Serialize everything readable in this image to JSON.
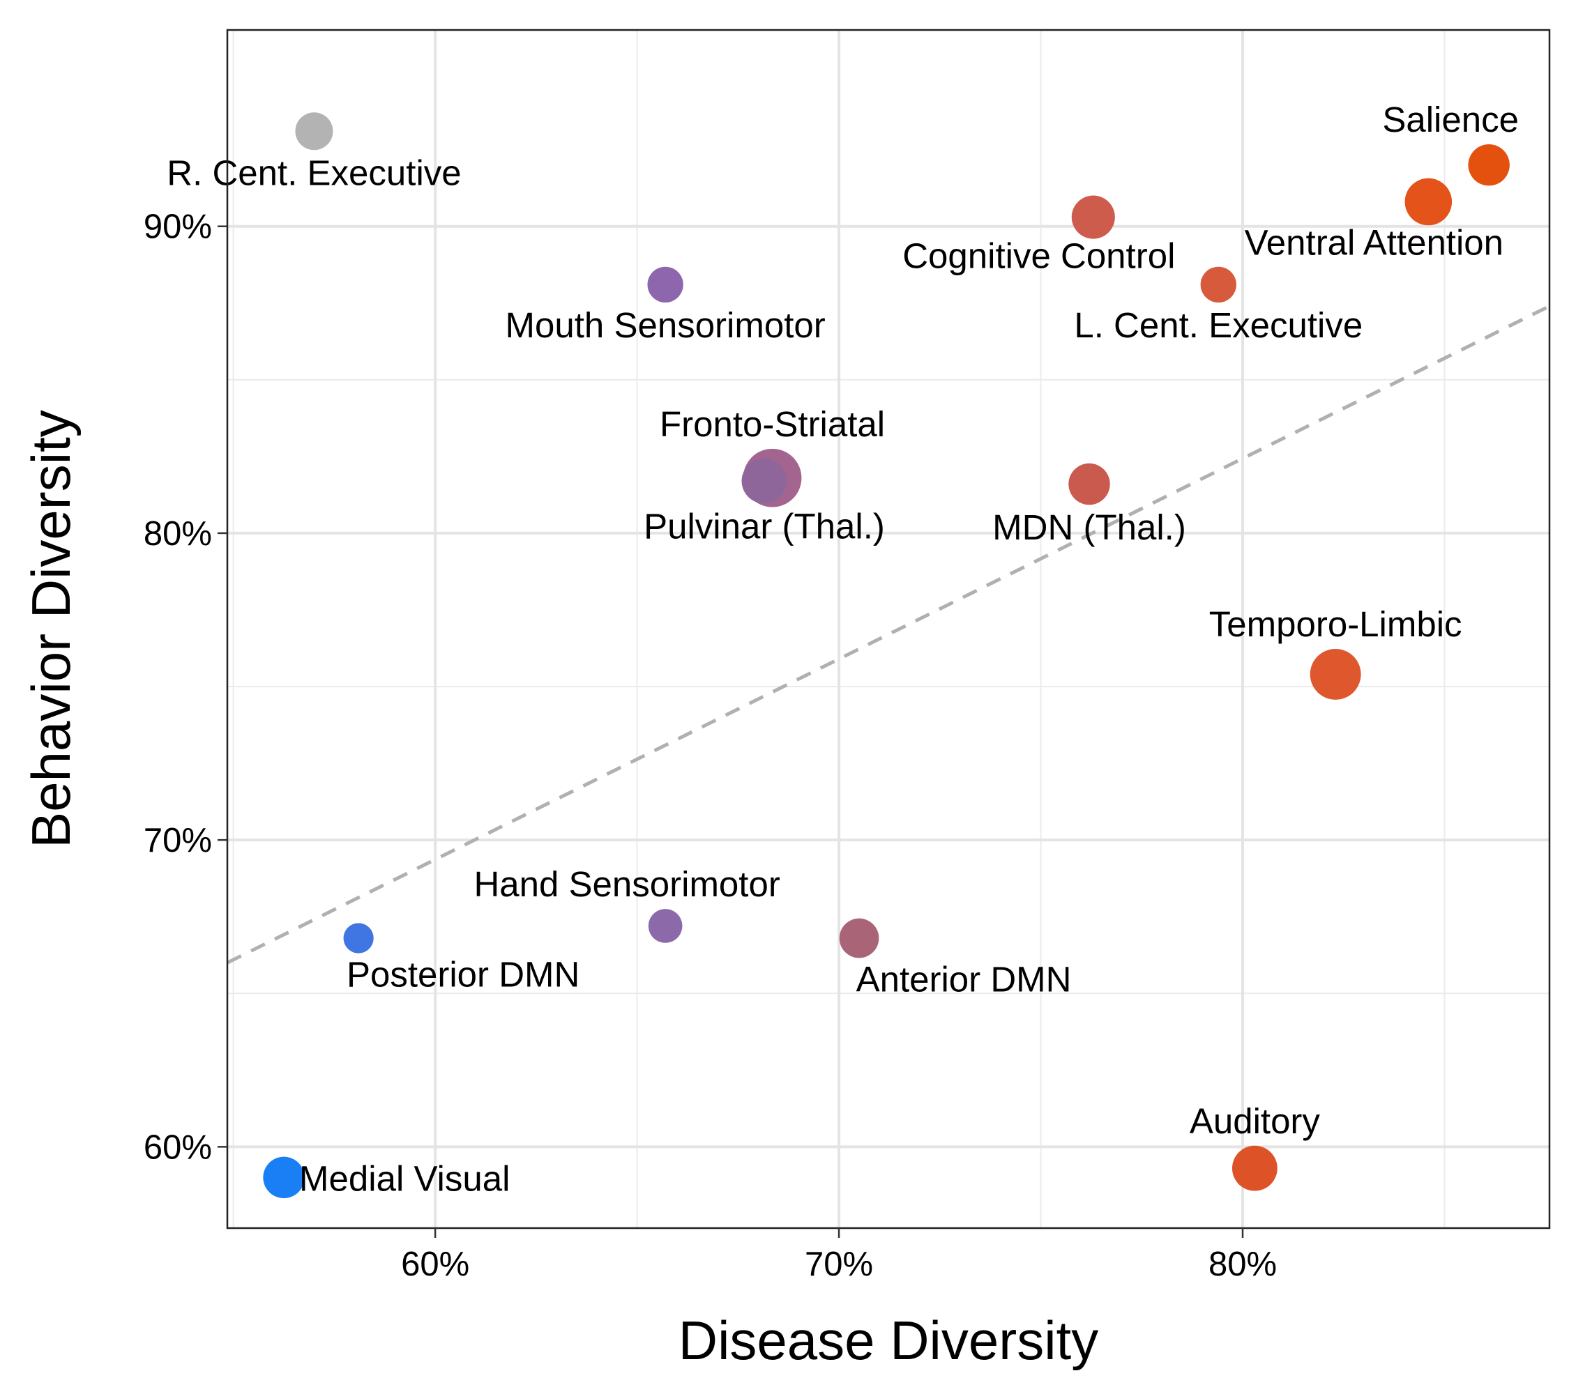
{
  "chart_data": {
    "type": "scatter",
    "xlabel": "Disease Diversity",
    "ylabel": "Behavior Diversity",
    "xlim": [
      0.5485,
      0.876
    ],
    "ylim": [
      0.5735,
      0.964
    ],
    "x_ticks": [
      0.6,
      0.7,
      0.8
    ],
    "x_tick_labels": [
      "60%",
      "70%",
      "80%"
    ],
    "y_ticks": [
      0.6,
      0.7,
      0.8,
      0.9
    ],
    "y_tick_labels": [
      "60%",
      "70%",
      "80%",
      "90%"
    ],
    "x_minor_ticks": [
      0.55,
      0.65,
      0.75,
      0.85
    ],
    "y_minor_ticks": [
      0.65,
      0.75,
      0.85
    ],
    "grid": true,
    "trend_line": {
      "style": "dashed",
      "color": "#b0b0b0",
      "x": [
        0.5485,
        0.876
      ],
      "y": [
        0.66,
        0.874
      ]
    },
    "points": [
      {
        "label": "R. Cent. Executive",
        "x": 0.57,
        "y": 0.931,
        "size": 1.0,
        "color": "#b3b3b3",
        "label_pos": "below"
      },
      {
        "label": "Salience",
        "x": 0.861,
        "y": 0.92,
        "size": 1.1,
        "color": "#e4510f",
        "label_pos": "above-left"
      },
      {
        "label": "Ventral Attention",
        "x": 0.846,
        "y": 0.908,
        "size": 1.25,
        "color": "#e3531a",
        "label_pos": "below-left"
      },
      {
        "label": "Cognitive Control",
        "x": 0.763,
        "y": 0.903,
        "size": 1.15,
        "color": "#cd5c4d",
        "label_pos": "below-left"
      },
      {
        "label": "Mouth Sensorimotor",
        "x": 0.657,
        "y": 0.881,
        "size": 0.95,
        "color": "#8e66ad",
        "label_pos": "below"
      },
      {
        "label": "L. Cent. Executive",
        "x": 0.794,
        "y": 0.881,
        "size": 0.95,
        "color": "#d65a3b",
        "label_pos": "below"
      },
      {
        "label": "Fronto-Striatal",
        "x": 0.6835,
        "y": 0.818,
        "size": 1.55,
        "color": "#a36590",
        "label_pos": "above"
      },
      {
        "label": "Pulvinar (Thal.)",
        "x": 0.6815,
        "y": 0.817,
        "size": 1.2,
        "color": "#8f6699",
        "label_pos": "below"
      },
      {
        "label": "MDN (Thal.)",
        "x": 0.762,
        "y": 0.816,
        "size": 1.1,
        "color": "#c95a4d",
        "label_pos": "below"
      },
      {
        "label": "Temporo-Limbic",
        "x": 0.823,
        "y": 0.754,
        "size": 1.35,
        "color": "#df572d",
        "label_pos": "above"
      },
      {
        "label": "Hand Sensorimotor",
        "x": 0.657,
        "y": 0.672,
        "size": 0.9,
        "color": "#8c6aaa",
        "label_pos": "above-left"
      },
      {
        "label": "Posterior DMN",
        "x": 0.581,
        "y": 0.668,
        "size": 0.8,
        "color": "#3f76e1",
        "label_pos": "below-right"
      },
      {
        "label": "Anterior DMN",
        "x": 0.705,
        "y": 0.668,
        "size": 1.05,
        "color": "#aa6478",
        "label_pos": "below-right"
      },
      {
        "label": "Medial Visual",
        "x": 0.5625,
        "y": 0.59,
        "size": 1.1,
        "color": "#1a7ef5",
        "label_pos": "right"
      },
      {
        "label": "Auditory",
        "x": 0.803,
        "y": 0.593,
        "size": 1.2,
        "color": "#de5228",
        "label_pos": "above"
      }
    ]
  }
}
